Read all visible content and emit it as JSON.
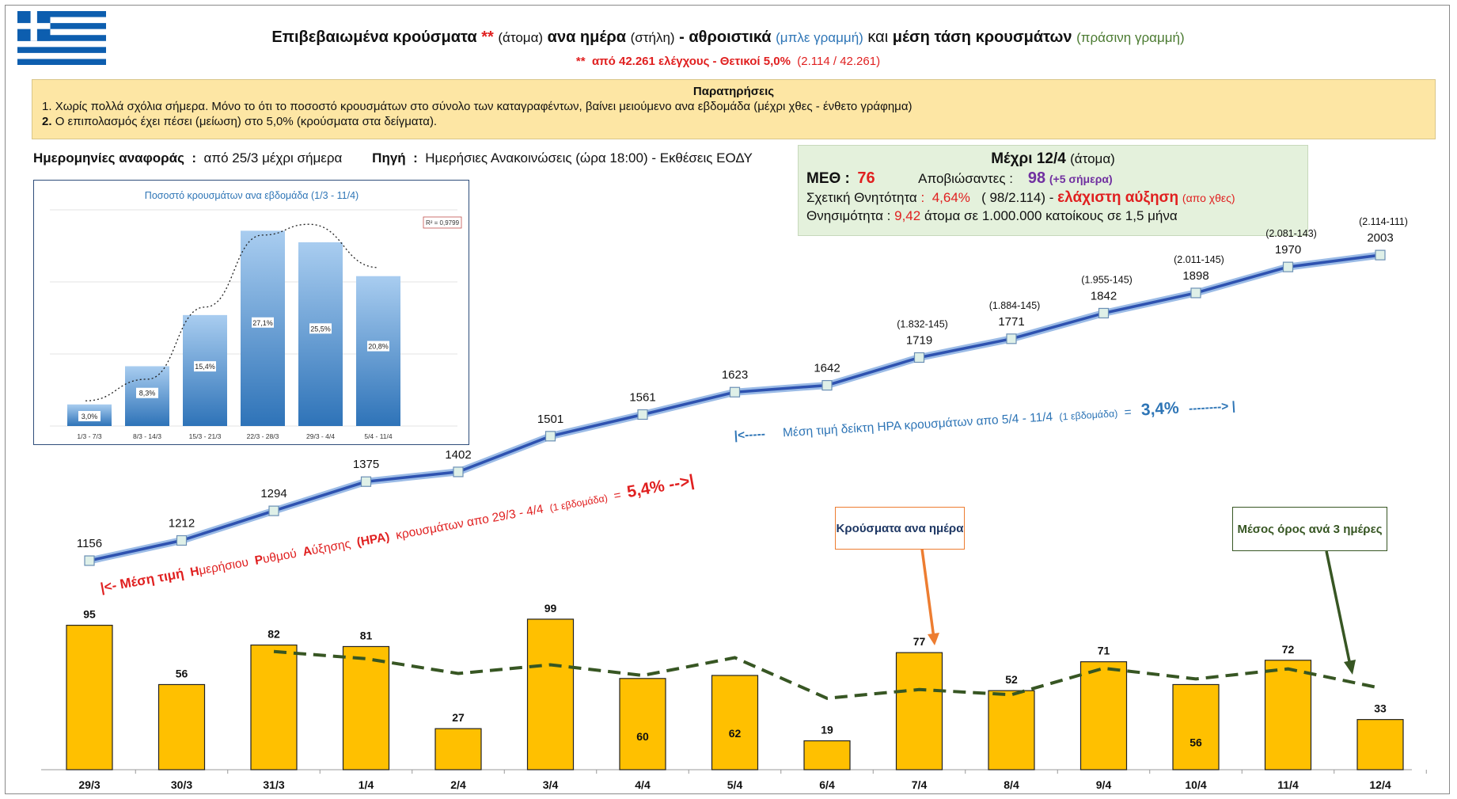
{
  "header": {
    "title_part1": "Επιβεβαιωμένα κρούσματα",
    "title_stars": "**",
    "title_part2": "(άτομα)",
    "title_part3": "ανα ημέρα",
    "title_part4": "(στήλη)",
    "title_part5": "- αθροιστικά",
    "title_part6": "(μπλε γραμμή)",
    "title_part7": "και",
    "title_part8": "μέση τάση κρουσμάτων",
    "title_part9": "(πράσινη γραμμή)",
    "subtitle_stars": "**",
    "subtitle_bold": "από 42.261 ελέγχους - Θετικοί 5,0%",
    "subtitle_rest": "(2.114 / 42.261)"
  },
  "notes": {
    "title": "Παρατηρήσεις",
    "line1_num": "1.",
    "line1": "Χωρίς πολλά σχόλια σήμερα. Μόνο το ότι το ποσοστό κρουσμάτων στο σύνολο των καταγραφέντων, βαίνει μειούμενο ανα εβδομάδα (μέχρι χθες - ένθετο γράφημα)",
    "line2_num": "2.",
    "line2": "Ο επιπολασμός έχει πέσει (μείωση) στο 5,0% (κρούσματα στα δείγματα)."
  },
  "reference": {
    "label": "Ημερομηνίες αναφοράς",
    "colon": ":",
    "value": "από 25/3 μέχρι σήμερα",
    "source_label": "Πηγή",
    "source_colon": ":",
    "source_value": "Ημερήσιες Ανακοινώσεις (ώρα 18:00) - Εκθέσεις ΕΟΔΥ"
  },
  "summary": {
    "heading_bold": "Μέχρι 12/4",
    "heading_rest": "(άτομα)",
    "icu_label": "ΜΕΘ :",
    "icu_value": "76",
    "deaths_label": "Αποβιώσαντες :",
    "deaths_value": "98",
    "deaths_extra": "(+5 σήμερα)",
    "cfr_label": "Σχετική Θνητότητα",
    "cfr_colon": ":",
    "cfr_value": "4,64%",
    "cfr_detail": "( 98/2.114) -",
    "cfr_note": "ελάχιστη αύξηση",
    "cfr_note_small": "(απο χθες)",
    "mort_label": "Θνησιμότητα :",
    "mort_value": "9,42",
    "mort_rest": "άτομα σε 1.000.000 κατοίκους σε 1,5 μήνα"
  },
  "annotations": {
    "hra1_prefix": "|<- Μέση τιμή",
    "hra1_H": "Η",
    "hra1_t1": "μερήσιου",
    "hra1_R": "Ρ",
    "hra1_t2": "υθμού",
    "hra1_A": "Α",
    "hra1_t3": "ύξησης",
    "hra1_paren": "(ΗΡΑ)",
    "hra1_t4": "κρουσμάτων απο 29/3 - 4/4",
    "hra1_week": "(1 εβδομάδα)",
    "hra1_eq": "=",
    "hra1_value": "5,4% -->|",
    "hra2_prefix": "|<-----",
    "hra2_text": "Μέση τιμή δείκτη ΗΡΑ κρουσμάτων απο 5/4 - 11/4",
    "hra2_week": "(1 εβδομάδα)",
    "hra2_eq": "=",
    "hra2_value": "3,4%",
    "hra2_suffix": "-------->  |",
    "box_daily": "Κρούσματα ανα ημέρα",
    "box_avg": "Μέσος όρος ανά 3 ημέρες"
  },
  "colors": {
    "bar": "#ffc000",
    "cumulative_line": "#2e52b0",
    "moving_avg": "#375623",
    "red_text": "#e02020",
    "blue_text": "#2e75b6",
    "box_daily_border": "#ed7d31",
    "box_avg_border": "#375623"
  },
  "chart_data": [
    {
      "type": "bar",
      "categories": [
        "29/3",
        "30/3",
        "31/3",
        "1/4",
        "2/4",
        "3/4",
        "4/4",
        "5/4",
        "6/4",
        "7/4",
        "8/4",
        "9/4",
        "10/4",
        "11/4",
        "12/4"
      ],
      "series": [
        {
          "values": [
            95,
            56,
            82,
            81,
            27,
            99,
            60,
            62,
            19,
            77,
            52,
            71,
            56,
            72,
            33
          ]
        }
      ],
      "moving_average_3d": [
        null,
        null,
        77.7,
        73,
        63.3,
        69,
        62,
        73.7,
        47,
        52.7,
        49.3,
        66.7,
        59.7,
        66.3,
        53.7
      ],
      "cumulative": [
        1156,
        1212,
        1294,
        1375,
        1402,
        1501,
        1561,
        1623,
        1642,
        1719,
        1771,
        1842,
        1898,
        1970,
        2003
      ],
      "cumulative_notes": [
        "",
        "",
        "",
        "",
        "",
        "",
        "",
        "",
        "",
        "(1.832-145)",
        "(1.884-145)",
        "(1.955-145)",
        "(2.011-145)",
        "(2.081-143)",
        "(2.114-111)"
      ]
    },
    {
      "type": "bar",
      "title": "Ποσοστό κρουσμάτων ανα εβδομάδα (1/3 - 11/4)",
      "categories": [
        "1/3 - 7/3",
        "8/3 - 14/3",
        "15/3 - 21/3",
        "22/3 - 28/3",
        "29/3 - 4/4",
        "5/4 - 11/4"
      ],
      "values": [
        3.0,
        8.3,
        15.4,
        27.1,
        25.5,
        20.8
      ],
      "value_labels": [
        "3,0%",
        "8,3%",
        "15,4%",
        "27,1%",
        "25,5%",
        "20,8%"
      ],
      "trendline": "polynomial",
      "r2_label": "R² = 0,9799",
      "ylim": [
        0,
        30
      ],
      "grid": true
    }
  ]
}
